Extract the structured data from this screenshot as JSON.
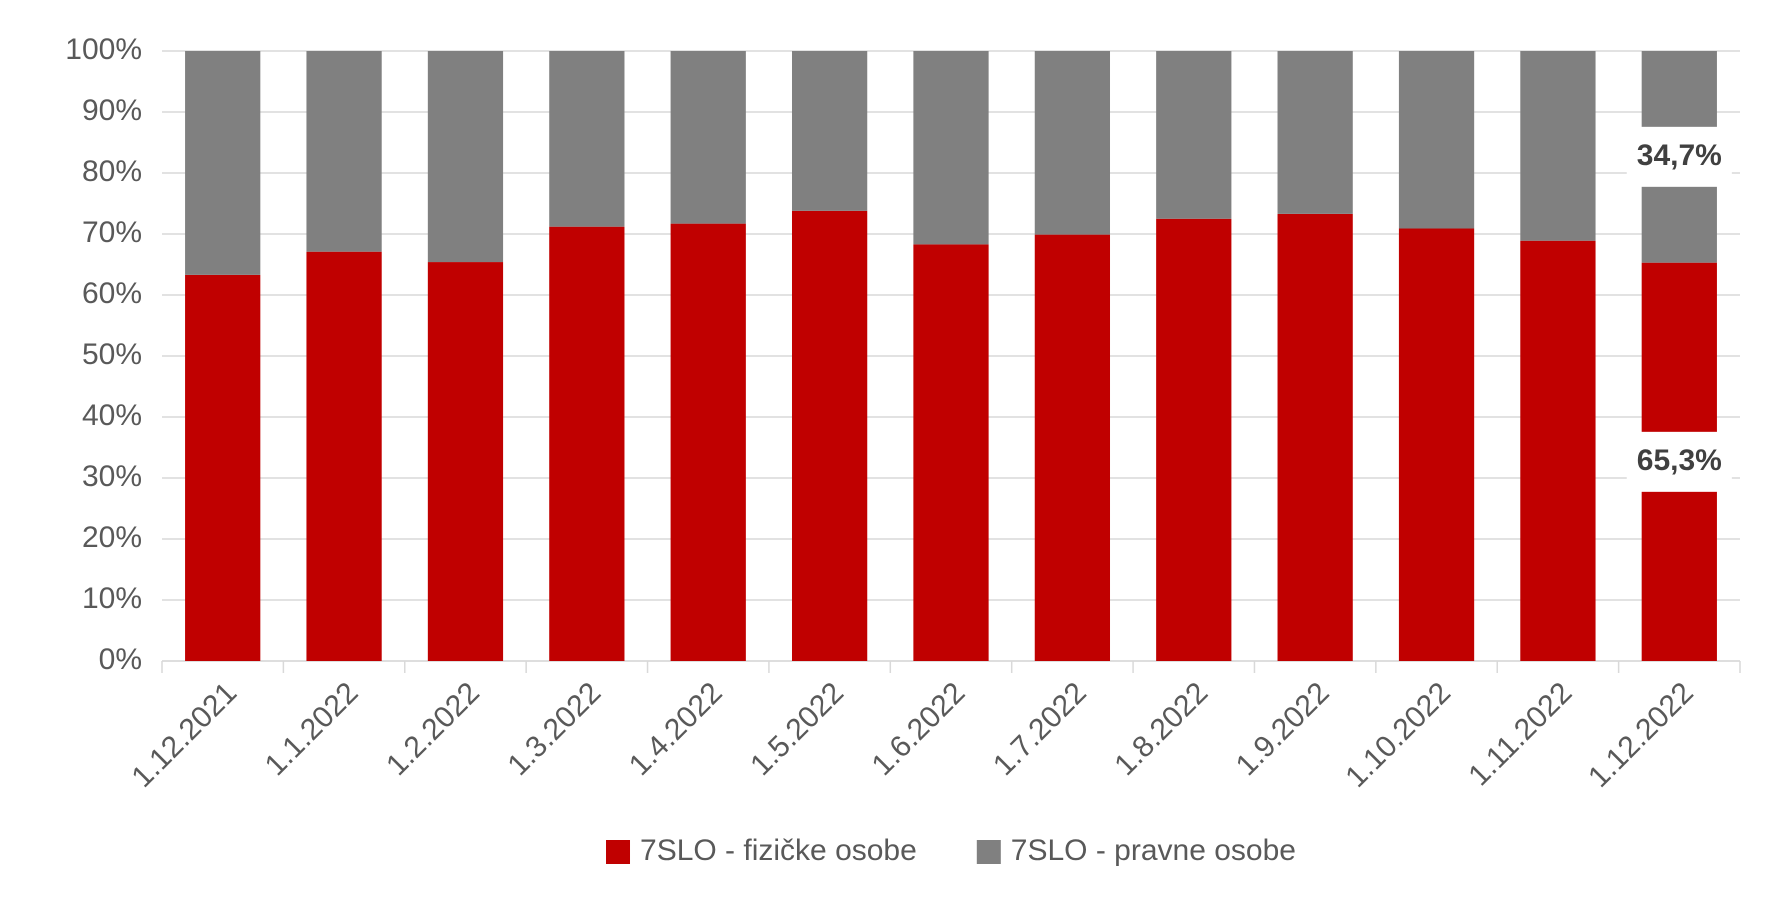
{
  "chart_data": {
    "type": "stacked_bar",
    "categories": [
      "1.12.2021",
      "1.1.2022",
      "1.2.2022",
      "1.3.2022",
      "1.4.2022",
      "1.5.2022",
      "1.6.2022",
      "1.7.2022",
      "1.8.2022",
      "1.9.2022",
      "1.10.2022",
      "1.11.2022",
      "1.12.2022"
    ],
    "series": [
      {
        "name": "7SLO - fizičke osobe",
        "color": "#c00000",
        "values": [
          63.3,
          67.1,
          65.4,
          71.2,
          71.7,
          73.8,
          68.3,
          69.9,
          72.5,
          73.3,
          70.9,
          68.9,
          65.3
        ],
        "value_labels": [
          null,
          null,
          null,
          null,
          null,
          null,
          null,
          null,
          null,
          null,
          null,
          null,
          "65,3%"
        ]
      },
      {
        "name": "7SLO - pravne osobe",
        "color": "#808080",
        "values": [
          36.7,
          32.9,
          34.6,
          28.8,
          28.3,
          26.2,
          31.7,
          30.1,
          27.5,
          26.7,
          29.1,
          31.1,
          34.7
        ],
        "value_labels": [
          null,
          null,
          null,
          null,
          null,
          null,
          null,
          null,
          null,
          null,
          null,
          null,
          "34,7%"
        ]
      }
    ],
    "ylim": [
      0,
      100
    ],
    "yticks": [
      {
        "value": 0,
        "label": "0%"
      },
      {
        "value": 10,
        "label": "10%"
      },
      {
        "value": 20,
        "label": "20%"
      },
      {
        "value": 30,
        "label": "30%"
      },
      {
        "value": 40,
        "label": "40%"
      },
      {
        "value": 50,
        "label": "50%"
      },
      {
        "value": 60,
        "label": "60%"
      },
      {
        "value": 70,
        "label": "70%"
      },
      {
        "value": 80,
        "label": "80%"
      },
      {
        "value": 90,
        "label": "90%"
      },
      {
        "value": 100,
        "label": "100%"
      }
    ],
    "grid": true,
    "legend": "bottom"
  }
}
